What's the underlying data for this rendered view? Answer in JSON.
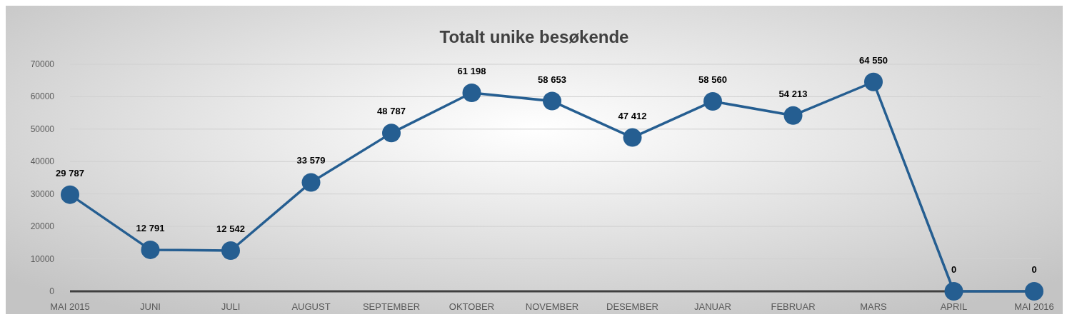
{
  "chart_data": {
    "type": "line",
    "title": "Totalt unike besøkende",
    "categories": [
      "MAI 2015",
      "JUNI",
      "JULI",
      "AUGUST",
      "SEPTEMBER",
      "OKTOBER",
      "NOVEMBER",
      "DESEMBER",
      "JANUAR",
      "FEBRUAR",
      "MARS",
      "APRIL",
      "MAI 2016"
    ],
    "values": [
      29787,
      12791,
      12542,
      33579,
      48787,
      61198,
      58653,
      47412,
      58560,
      54213,
      64550,
      0,
      0
    ],
    "value_labels": [
      "29 787",
      "12 791",
      "12 542",
      "33 579",
      "48 787",
      "61 198",
      "58 653",
      "47 412",
      "58 560",
      "54 213",
      "64 550",
      "0",
      "0"
    ],
    "color": "#255e91",
    "ylim": [
      0,
      70000
    ],
    "yticks": [
      0,
      10000,
      20000,
      30000,
      40000,
      50000,
      60000,
      70000
    ],
    "grid": "y",
    "marker": "circle",
    "line_style": "solid"
  }
}
